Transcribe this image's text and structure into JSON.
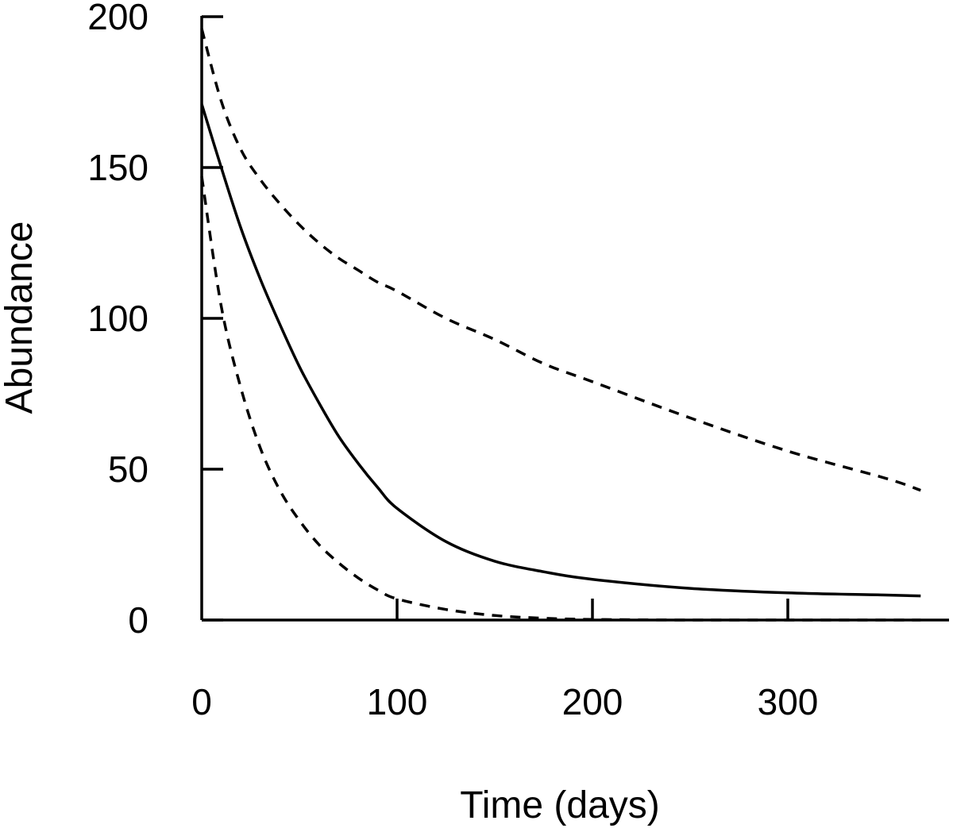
{
  "chart_data": {
    "type": "line",
    "xlabel": "Time (days)",
    "ylabel": "Abundance",
    "xlim": [
      0,
      370
    ],
    "ylim": [
      0,
      200
    ],
    "x_ticks": [
      0,
      100,
      200,
      300
    ],
    "y_ticks": [
      0,
      50,
      100,
      150,
      200
    ],
    "x_tick_labels": [
      "0",
      "100",
      "200",
      "300"
    ],
    "y_tick_labels": [
      "0",
      "50",
      "100",
      "150",
      "200"
    ],
    "grid": false,
    "legend": "none",
    "x": [
      0,
      10,
      20,
      30,
      40,
      50,
      60,
      70,
      80,
      90,
      100,
      125,
      150,
      175,
      200,
      250,
      300,
      350,
      368
    ],
    "series": [
      {
        "style": "solid",
        "values": [
          171,
          150,
          130,
          113,
          98,
          84,
          72,
          61,
          52,
          44,
          37,
          26,
          19.5,
          16,
          13.5,
          10.5,
          9,
          8.3,
          8
        ]
      },
      {
        "style": "dashed",
        "values": [
          196,
          172,
          156,
          146,
          138,
          131,
          125,
          120,
          116,
          112,
          109,
          100,
          93,
          85,
          79,
          67,
          56,
          47,
          43
        ]
      },
      {
        "style": "dashed",
        "values": [
          147,
          104,
          77,
          57,
          43,
          33,
          25,
          19,
          14,
          10,
          7,
          3.5,
          1.5,
          0.6,
          0.2,
          0,
          0,
          0,
          0
        ]
      }
    ]
  }
}
